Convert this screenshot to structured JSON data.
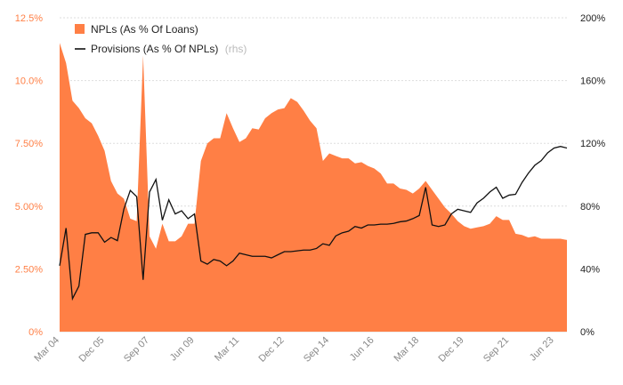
{
  "chart_data": {
    "type": "area",
    "x_label_every": 7,
    "x": [
      "Mar 04",
      "Jun 04",
      "Sep 04",
      "Dec 04",
      "Mar 05",
      "Jun 05",
      "Sep 05",
      "Dec 05",
      "Mar 06",
      "Jun 06",
      "Sep 06",
      "Dec 06",
      "Mar 07",
      "Jun 07",
      "Sep 07",
      "Dec 07",
      "Mar 08",
      "Jun 08",
      "Sep 08",
      "Dec 08",
      "Mar 09",
      "Jun 09",
      "Sep 09",
      "Dec 09",
      "Mar 10",
      "Jun 10",
      "Sep 10",
      "Dec 10",
      "Mar 11",
      "Jun 11",
      "Sep 11",
      "Dec 11",
      "Mar 12",
      "Jun 12",
      "Sep 12",
      "Dec 12",
      "Mar 13",
      "Jun 13",
      "Sep 13",
      "Dec 13",
      "Mar 14",
      "Jun 14",
      "Sep 14",
      "Dec 14",
      "Mar 15",
      "Jun 15",
      "Sep 15",
      "Dec 15",
      "Mar 16",
      "Jun 16",
      "Sep 16",
      "Dec 16",
      "Mar 17",
      "Jun 17",
      "Sep 17",
      "Dec 17",
      "Mar 18",
      "Jun 18",
      "Sep 18",
      "Dec 18",
      "Mar 19",
      "Jun 19",
      "Sep 19",
      "Dec 19",
      "Mar 20",
      "Jun 20",
      "Sep 20",
      "Dec 20",
      "Mar 21",
      "Jun 21",
      "Sep 21",
      "Dec 21",
      "Mar 22",
      "Jun 22",
      "Sep 22",
      "Dec 22",
      "Mar 23",
      "Jun 23",
      "Sep 23",
      "Dec 23"
    ],
    "series": [
      {
        "name": "NPLs (As % Of Loans)",
        "axis": "left",
        "kind": "area",
        "color": "#ff7f45",
        "values": [
          11.5,
          10.7,
          9.2,
          8.9,
          8.5,
          8.3,
          7.8,
          7.2,
          6.0,
          5.5,
          5.3,
          4.5,
          4.4,
          11.0,
          3.8,
          3.3,
          4.3,
          3.6,
          3.6,
          3.8,
          4.3,
          4.3,
          6.8,
          7.5,
          7.7,
          7.7,
          8.7,
          8.1,
          7.55,
          7.7,
          8.1,
          8.05,
          8.5,
          8.7,
          8.85,
          8.9,
          9.3,
          9.15,
          8.8,
          8.4,
          8.1,
          6.8,
          7.1,
          7.0,
          6.9,
          6.9,
          6.7,
          6.75,
          6.6,
          6.5,
          6.3,
          5.9,
          5.9,
          5.7,
          5.65,
          5.5,
          5.7,
          6.0,
          5.65,
          5.3,
          4.95,
          4.7,
          4.4,
          4.2,
          4.1,
          4.15,
          4.2,
          4.3,
          4.6,
          4.45,
          4.45,
          3.9,
          3.85,
          3.75,
          3.8,
          3.7,
          3.7,
          3.7,
          3.7,
          3.65
        ]
      },
      {
        "name": "Provisions (As % Of NPLs)",
        "axis": "right",
        "kind": "line",
        "color": "#111111",
        "values": [
          42,
          66,
          21,
          29,
          62,
          63,
          63,
          57,
          60,
          58,
          78,
          90,
          86,
          33,
          89,
          97,
          71,
          84,
          75,
          77,
          72,
          75,
          45,
          43,
          46,
          45,
          42,
          45,
          50,
          49,
          48,
          48,
          48,
          47,
          49,
          51,
          51,
          51.5,
          52,
          52,
          53,
          56,
          55,
          61,
          63,
          64,
          67,
          66,
          68,
          68,
          68.5,
          68.5,
          69,
          70,
          70.5,
          72,
          74,
          92,
          68,
          67,
          68,
          75,
          78,
          77,
          76,
          82,
          85,
          89,
          92,
          85,
          87,
          87.5,
          95,
          101,
          106,
          109,
          114,
          117,
          118,
          117
        ]
      }
    ],
    "y_left": {
      "ticks": [
        "0%",
        "2.50%",
        "5.00%",
        "7.50%",
        "10.0%",
        "12.5%"
      ],
      "min": 0,
      "max": 12.5
    },
    "y_right": {
      "ticks": [
        "0%",
        "40%",
        "80%",
        "120%",
        "160%",
        "200%"
      ],
      "min": 0,
      "max": 200
    },
    "legend": [
      {
        "label": "NPLs (As % Of Loans)",
        "suffix": ""
      },
      {
        "label": "Provisions (As % Of NPLs)",
        "suffix": "(rhs)"
      }
    ],
    "legend_position": "top-left",
    "grid": true
  },
  "colors": {
    "npl_fill": "#ff7f45",
    "left_axis_text": "#ff7f45",
    "right_axis_text": "#222222",
    "x_axis_text": "#888888",
    "grid": "#dddddd",
    "rhs_suffix": "#bbbbbb"
  }
}
